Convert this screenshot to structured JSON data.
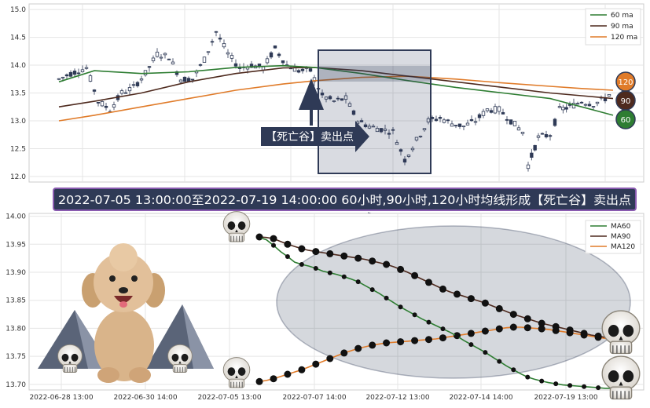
{
  "top_chart": {
    "type": "candlestick",
    "y_ticks": [
      "15.0",
      "14.5",
      "14.0",
      "13.5",
      "13.0",
      "12.5",
      "12.0"
    ],
    "ylim": [
      11.9,
      15.1
    ],
    "legend": [
      {
        "label": "60 ma",
        "color": "#2e7d32"
      },
      {
        "label": "90 ma",
        "color": "#4e2a1e"
      },
      {
        "label": "120 ma",
        "color": "#e07b29"
      }
    ],
    "end_badges": [
      {
        "label": "120",
        "color": "#e07b29"
      },
      {
        "label": "90",
        "color": "#4e2a1e"
      },
      {
        "label": "60",
        "color": "#2e7d32"
      }
    ],
    "signal_label": "【死亡谷】卖出点"
  },
  "banner": "2022-07-05 13:00:00至2022-07-19 14:00:00 60小时,90小时,120小时均线形成【死亡谷】卖出点",
  "chart_data": {
    "type": "line",
    "x": [
      "2022-07-05 13:00",
      "2022-07-05 14:00",
      "2022-07-05 15:00",
      "2022-07-06 10:00",
      "2022-07-06 11:00",
      "2022-07-06 13:00",
      "2022-07-06 14:00",
      "2022-07-06 15:00",
      "2022-07-07 10:00",
      "2022-07-07 11:00",
      "2022-07-07 13:00",
      "2022-07-07 14:00",
      "2022-07-07 15:00",
      "2022-07-08 10:00",
      "2022-07-08 11:00",
      "2022-07-08 13:00",
      "2022-07-08 14:00",
      "2022-07-08 15:00",
      "2022-07-11 10:00",
      "2022-07-11 11:00",
      "2022-07-11 13:00",
      "2022-07-11 14:00",
      "2022-07-11 15:00",
      "2022-07-12 10:00",
      "2022-07-12 11:00",
      "2022-07-12 13:00",
      "2022-07-12 14:00",
      "2022-07-12 15:00",
      "2022-07-13 10:00",
      "2022-07-13 11:00",
      "2022-07-13 13:00",
      "2022-07-13 14:00",
      "2022-07-13 15:00",
      "2022-07-14 10:00",
      "2022-07-14 11:00",
      "2022-07-14 13:00",
      "2022-07-14 14:00",
      "2022-07-14 15:00",
      "2022-07-15 10:00",
      "2022-07-15 11:00",
      "2022-07-15 13:00",
      "2022-07-15 14:00",
      "2022-07-15 15:00",
      "2022-07-18 10:00",
      "2022-07-18 11:00",
      "2022-07-18 13:00",
      "2022-07-18 14:00",
      "2022-07-18 15:00",
      "2022-07-19 10:00",
      "2022-07-19 11:00",
      "2022-07-19 13:00",
      "2022-07-19 14:00"
    ],
    "x_tick_labels": [
      "2022-06-28 13:00",
      "2022-06-30 14:00",
      "2022-07-05 13:00",
      "2022-07-07 14:00",
      "2022-07-12 13:00",
      "2022-07-14 14:00",
      "2022-07-19 13:00"
    ],
    "y_ticks": [
      "14.00",
      "13.95",
      "13.90",
      "13.85",
      "13.80",
      "13.75",
      "13.70"
    ],
    "ylim": [
      13.69,
      14.005
    ],
    "series": [
      {
        "name": "MA60",
        "color": "#2e7d32",
        "values": [
          13.962,
          13.958,
          13.948,
          13.937,
          13.928,
          13.918,
          13.914,
          13.911,
          13.907,
          13.902,
          13.899,
          13.896,
          13.892,
          13.888,
          13.883,
          13.876,
          13.869,
          13.862,
          13.854,
          13.846,
          13.838,
          13.831,
          13.824,
          13.817,
          13.811,
          13.805,
          13.799,
          13.793,
          13.786,
          13.778,
          13.771,
          13.764,
          13.757,
          13.749,
          13.741,
          13.733,
          13.726,
          13.719,
          13.713,
          13.709,
          13.706,
          13.703,
          13.701,
          13.699,
          13.698,
          13.697,
          13.696,
          13.695,
          13.694,
          13.693,
          13.693,
          13.692
        ]
      },
      {
        "name": "MA90",
        "color": "#4e2a1e",
        "values": [
          13.963,
          13.962,
          13.96,
          13.955,
          13.95,
          13.946,
          13.942,
          13.939,
          13.937,
          13.935,
          13.933,
          13.931,
          13.929,
          13.927,
          13.925,
          13.923,
          13.92,
          13.917,
          13.914,
          13.91,
          13.905,
          13.9,
          13.894,
          13.888,
          13.882,
          13.876,
          13.87,
          13.865,
          13.861,
          13.857,
          13.853,
          13.849,
          13.845,
          13.84,
          13.835,
          13.83,
          13.825,
          13.821,
          13.817,
          13.813,
          13.809,
          13.806,
          13.803,
          13.8,
          13.797,
          13.794,
          13.791,
          13.788,
          13.786,
          13.784,
          13.782,
          13.78
        ]
      },
      {
        "name": "MA120",
        "color": "#e07b29",
        "values": [
          13.705,
          13.707,
          13.71,
          13.714,
          13.718,
          13.722,
          13.726,
          13.731,
          13.736,
          13.741,
          13.746,
          13.751,
          13.756,
          13.76,
          13.764,
          13.767,
          13.77,
          13.772,
          13.774,
          13.775,
          13.776,
          13.777,
          13.778,
          13.779,
          13.78,
          13.781,
          13.783,
          13.785,
          13.787,
          13.789,
          13.791,
          13.793,
          13.795,
          13.797,
          13.799,
          13.801,
          13.802,
          13.802,
          13.801,
          13.8,
          13.799,
          13.798,
          13.796,
          13.794,
          13.792,
          13.79,
          13.788,
          13.786,
          13.784,
          13.782,
          13.78,
          13.778
        ]
      }
    ],
    "legend_placement": "top-right",
    "grid": true
  }
}
